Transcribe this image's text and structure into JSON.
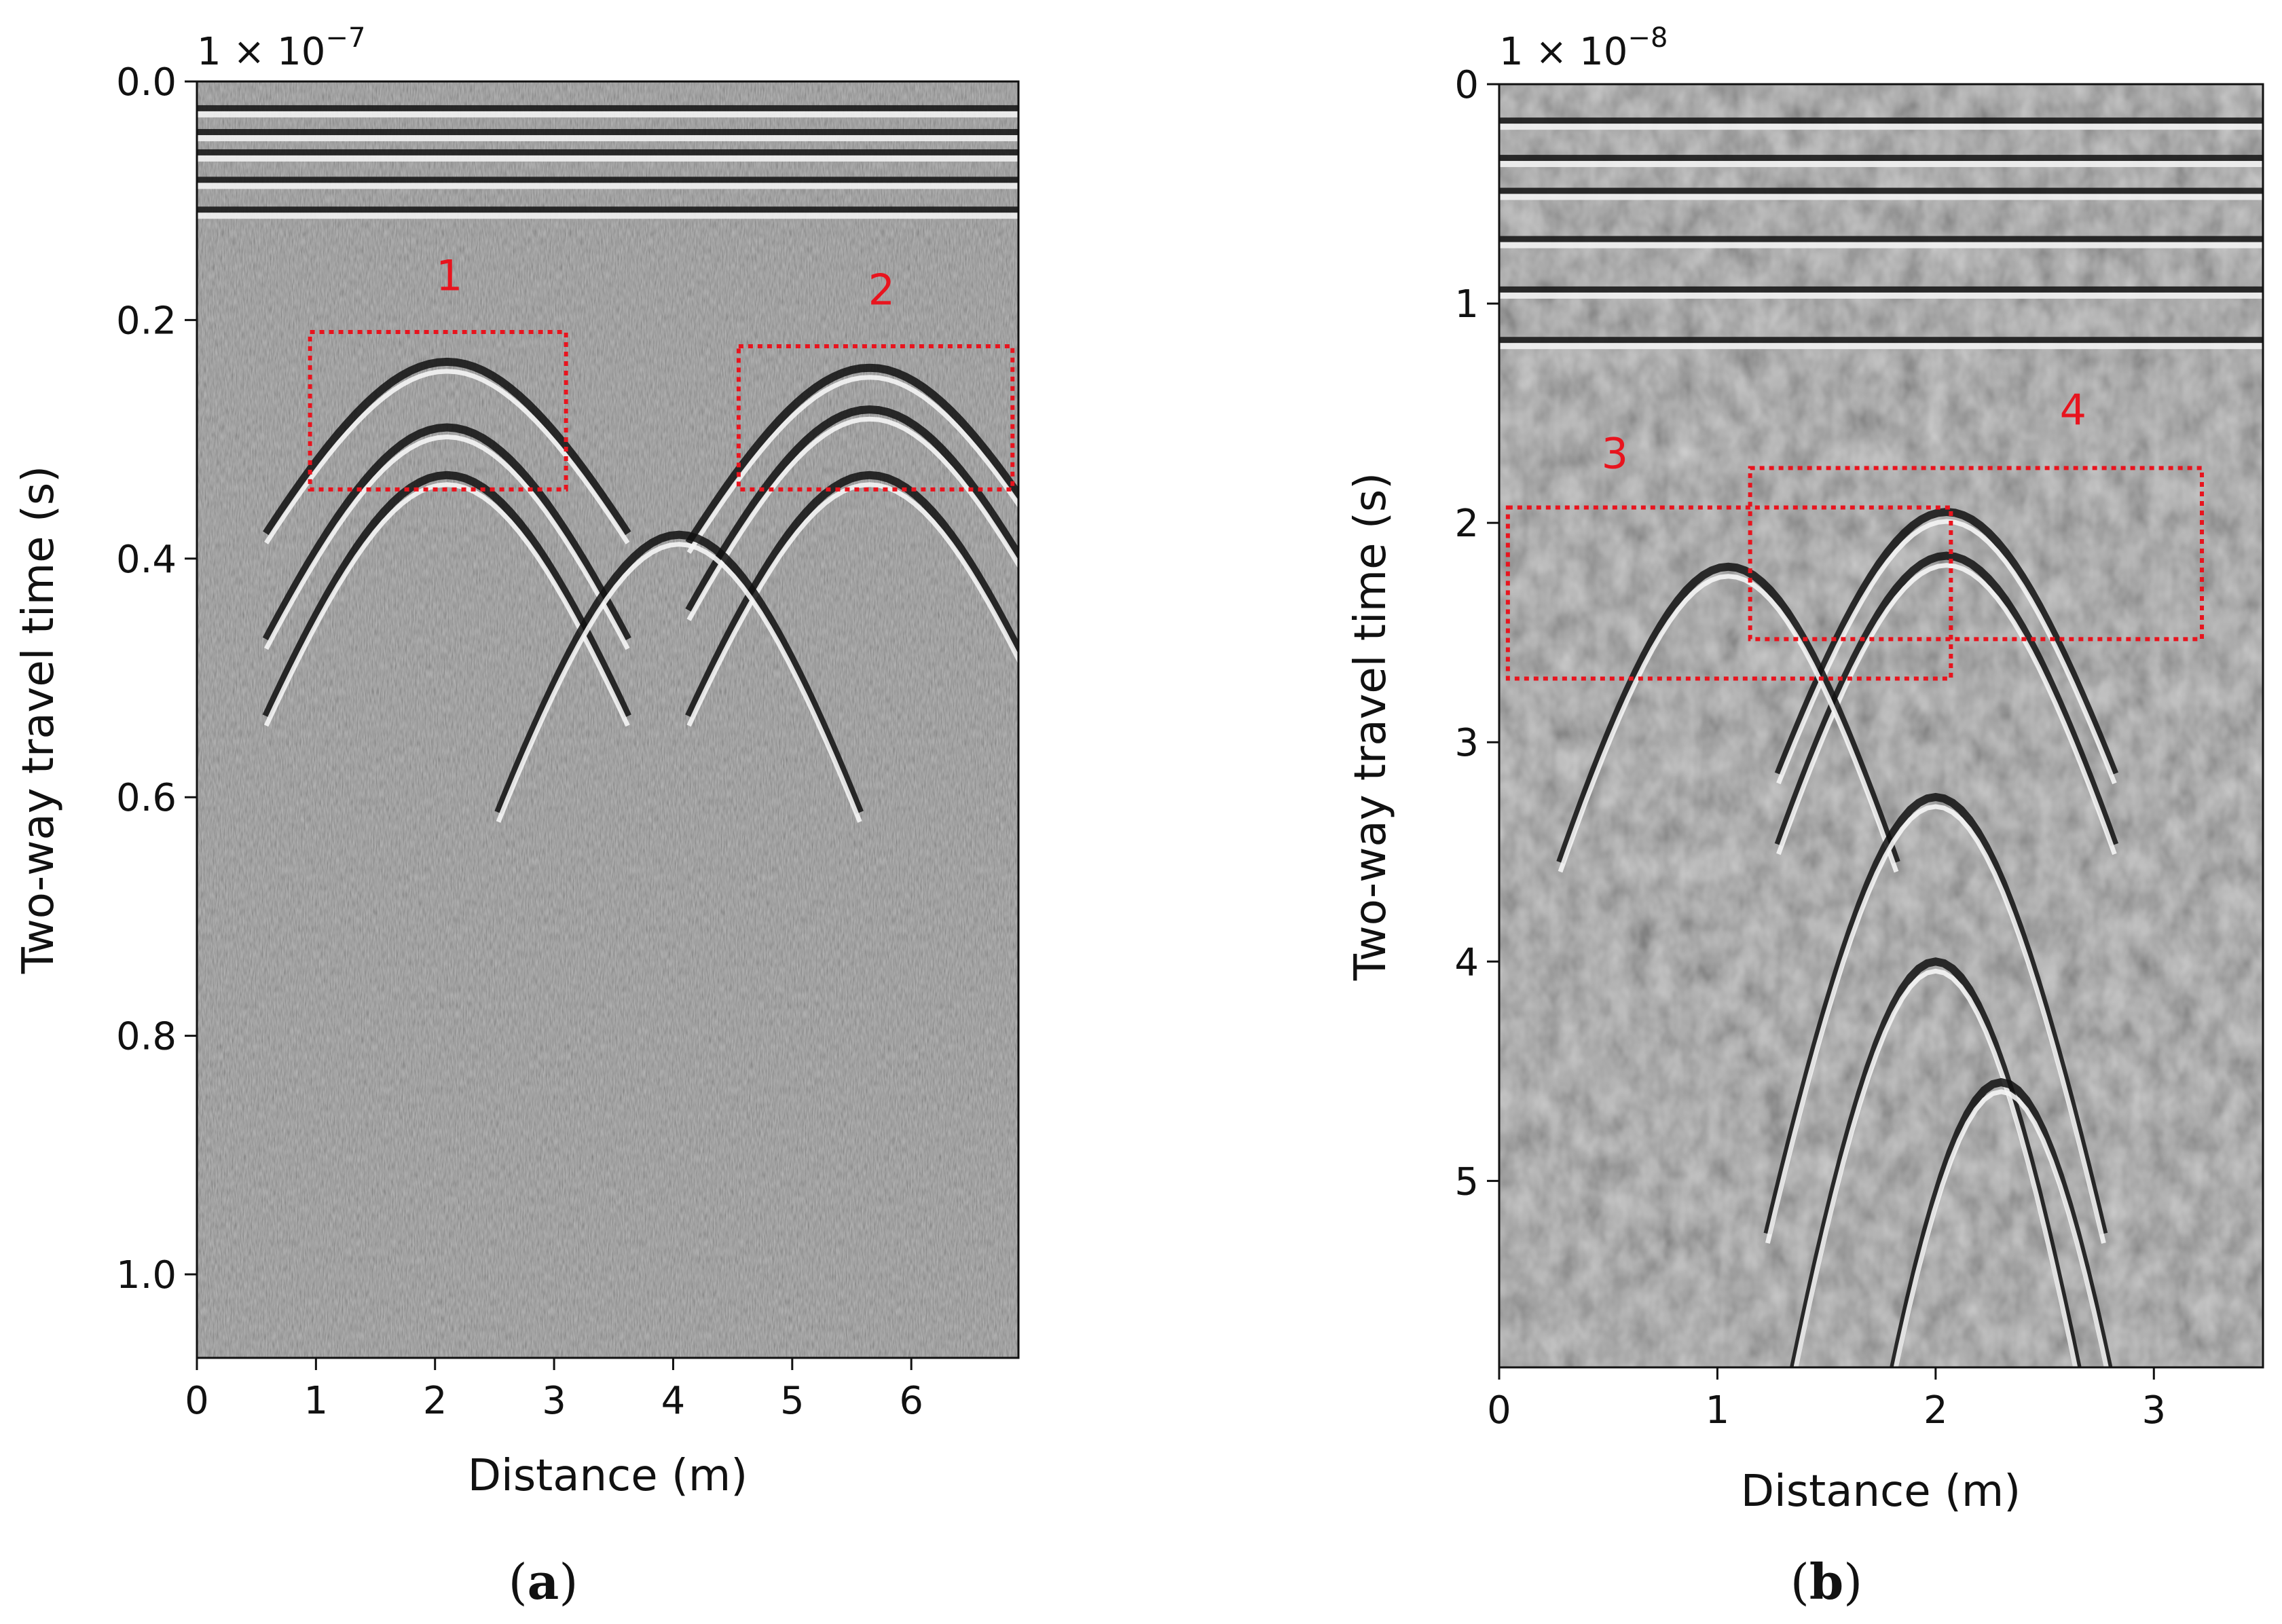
{
  "chart_data": [
    {
      "type": "heatmap",
      "panel_caption": "a",
      "colormap": "grayscale radargram (B-scan)",
      "offset_label": {
        "mantissa": "1 × 10",
        "exponent": "−7"
      },
      "xlabel": "Distance (m)",
      "ylabel": "Two-way travel time (s)",
      "xlim": [
        0,
        6.9
      ],
      "ylim": [
        1.07,
        0.0
      ],
      "y_inverted": true,
      "x_ticks": [
        {
          "v": 0,
          "label": "0"
        },
        {
          "v": 1,
          "label": "1"
        },
        {
          "v": 2,
          "label": "2"
        },
        {
          "v": 3,
          "label": "3"
        },
        {
          "v": 4,
          "label": "4"
        },
        {
          "v": 5,
          "label": "5"
        },
        {
          "v": 6,
          "label": "6"
        }
      ],
      "y_ticks": [
        {
          "v": 0.0,
          "label": "0.0"
        },
        {
          "v": 0.2,
          "label": "0.2"
        },
        {
          "v": 0.4,
          "label": "0.4"
        },
        {
          "v": 0.6,
          "label": "0.6"
        },
        {
          "v": 0.8,
          "label": "0.8"
        },
        {
          "v": 1.0,
          "label": "1.0"
        }
      ],
      "horizontal_bands": [
        0.025,
        0.045,
        0.062,
        0.085,
        0.11
      ],
      "hyperbolas": [
        {
          "x0": 2.1,
          "t0": 0.235
        },
        {
          "x0": 2.1,
          "t0": 0.29
        },
        {
          "x0": 2.1,
          "t0": 0.33
        },
        {
          "x0": 5.65,
          "t0": 0.24
        },
        {
          "x0": 5.65,
          "t0": 0.275
        },
        {
          "x0": 5.65,
          "t0": 0.33
        },
        {
          "x0": 4.05,
          "t0": 0.38
        }
      ],
      "annotations": [
        {
          "label": "1",
          "box": {
            "x": [
              0.95,
              3.1
            ],
            "y": [
              0.21,
              0.342
            ]
          },
          "label_at": {
            "x": 2.12,
            "y": 0.175
          }
        },
        {
          "label": "2",
          "box": {
            "x": [
              4.55,
              6.85
            ],
            "y": [
              0.222,
              0.342
            ]
          },
          "label_at": {
            "x": 5.75,
            "y": 0.187
          }
        }
      ],
      "annotation_color": "#e8141e"
    },
    {
      "type": "heatmap",
      "panel_caption": "b",
      "colormap": "grayscale radargram (B-scan)",
      "offset_label": {
        "mantissa": "1 × 10",
        "exponent": "−8"
      },
      "xlabel": "Distance (m)",
      "ylabel": "Two-way travel time (s)",
      "xlim": [
        0,
        3.5
      ],
      "ylim": [
        5.85,
        0.0
      ],
      "y_inverted": true,
      "x_ticks": [
        {
          "v": 0,
          "label": "0"
        },
        {
          "v": 1,
          "label": "1"
        },
        {
          "v": 2,
          "label": "2"
        },
        {
          "v": 3,
          "label": "3"
        }
      ],
      "y_ticks": [
        {
          "v": 0,
          "label": "0"
        },
        {
          "v": 1,
          "label": "1"
        },
        {
          "v": 2,
          "label": "2"
        },
        {
          "v": 3,
          "label": "3"
        },
        {
          "v": 4,
          "label": "4"
        },
        {
          "v": 5,
          "label": "5"
        }
      ],
      "horizontal_bands": [
        0.18,
        0.35,
        0.5,
        0.72,
        0.95,
        1.18
      ],
      "hyperbolas": [
        {
          "x0": 2.05,
          "t0": 1.95
        },
        {
          "x0": 2.05,
          "t0": 2.15
        },
        {
          "x0": 1.05,
          "t0": 2.2
        },
        {
          "x0": 2.0,
          "t0": 3.25
        },
        {
          "x0": 2.0,
          "t0": 4.0
        },
        {
          "x0": 2.3,
          "t0": 4.55
        }
      ],
      "annotations": [
        {
          "label": "3",
          "box": {
            "x": [
              0.04,
              2.07
            ],
            "y": [
              1.93,
              2.71
            ]
          },
          "label_at": {
            "x": 0.53,
            "y": 1.75
          }
        },
        {
          "label": "4",
          "box": {
            "x": [
              1.15,
              3.22
            ],
            "y": [
              1.75,
              2.53
            ]
          },
          "label_at": {
            "x": 2.63,
            "y": 1.55
          }
        }
      ],
      "annotation_color": "#e8141e"
    }
  ]
}
